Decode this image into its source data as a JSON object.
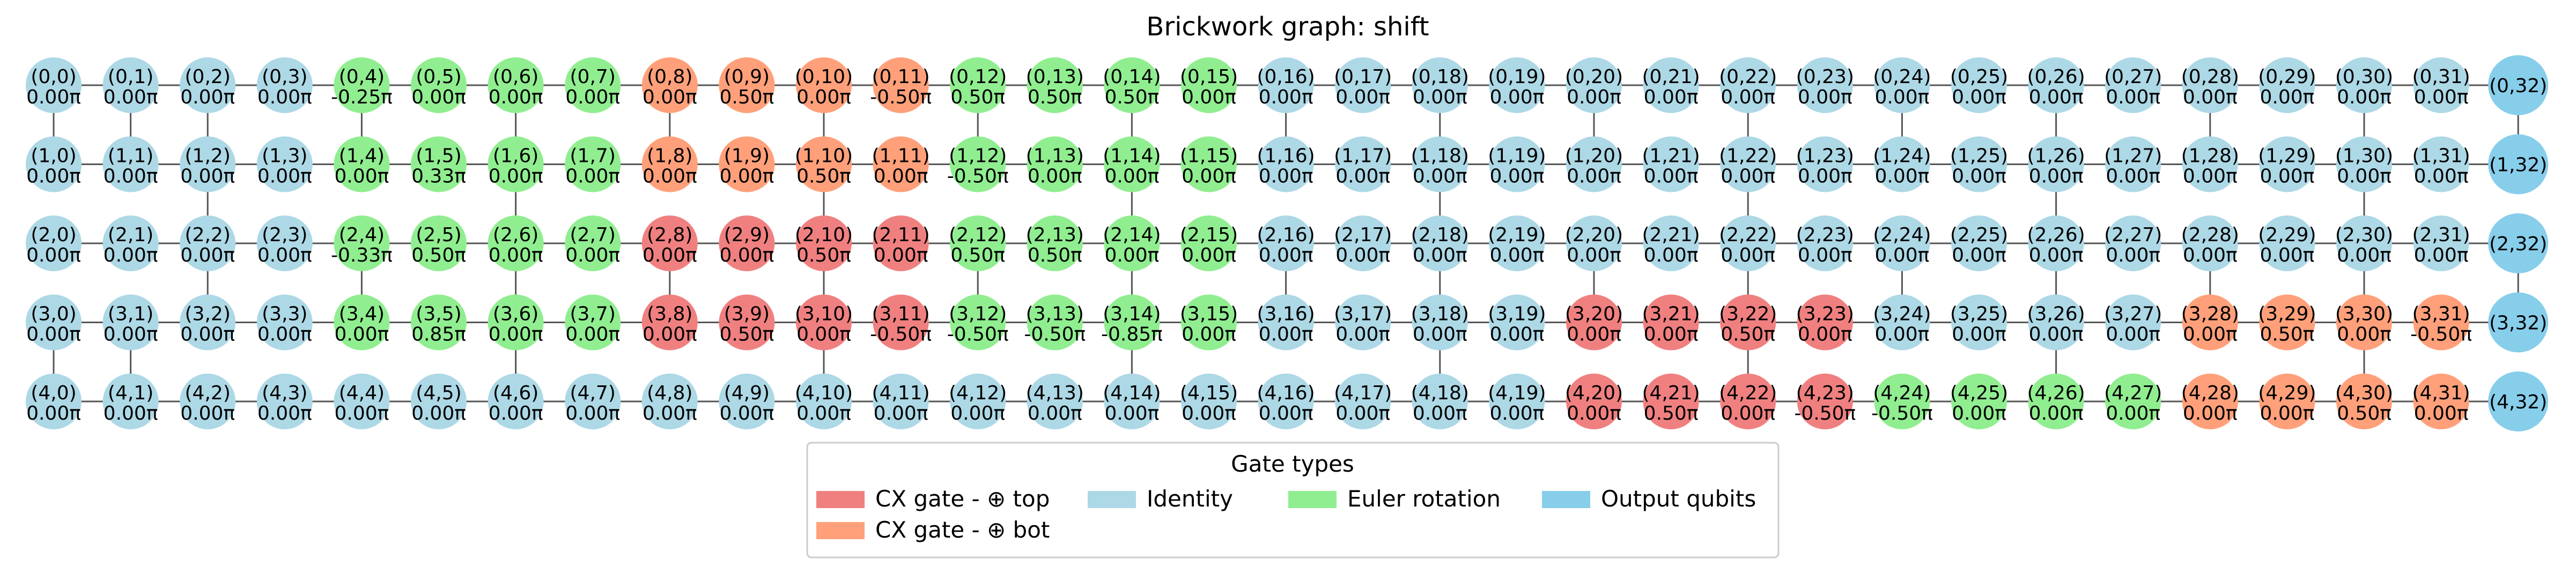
{
  "title": "Brickwork graph: shift",
  "colors": {
    "cx_top": "#f08080",
    "cx_bot": "#ffa07a",
    "identity": "#add8e6",
    "euler": "#90ee90",
    "output": "#87ceeb",
    "edge": "#555555"
  },
  "legend": {
    "title": "Gate types",
    "items": [
      {
        "key": "cx_top",
        "label": "CX gate - ⊕ top"
      },
      {
        "key": "cx_bot",
        "label": "CX gate - ⊕ bot"
      },
      {
        "key": "identity",
        "label": "Identity"
      },
      {
        "key": "euler",
        "label": "Euler rotation"
      },
      {
        "key": "output",
        "label": "Output qubits"
      }
    ]
  },
  "grid": {
    "rows": 5,
    "cols": 33,
    "vertical_links": [
      [
        0,
        1,
        2,
        4,
        6,
        8,
        10,
        12,
        14,
        16,
        18,
        20,
        22,
        24,
        26,
        28,
        30,
        32
      ],
      [
        2,
        6,
        10,
        14,
        18,
        22,
        26,
        30
      ],
      [
        2,
        4,
        6,
        8,
        10,
        12,
        14,
        16,
        18,
        20,
        22,
        24,
        26,
        28,
        30,
        32
      ],
      [
        0,
        1,
        6,
        10,
        14,
        18,
        22,
        26,
        30
      ]
    ]
  },
  "nodes": [
    [
      "I",
      "I",
      "I",
      "I",
      "E",
      "E",
      "E",
      "E",
      "B",
      "B",
      "B",
      "B",
      "E",
      "E",
      "E",
      "E",
      "I",
      "I",
      "I",
      "I",
      "I",
      "I",
      "I",
      "I",
      "I",
      "I",
      "I",
      "I",
      "I",
      "I",
      "I",
      "I",
      "O"
    ],
    [
      "I",
      "I",
      "I",
      "I",
      "E",
      "E",
      "E",
      "E",
      "B",
      "B",
      "B",
      "B",
      "E",
      "E",
      "E",
      "E",
      "I",
      "I",
      "I",
      "I",
      "I",
      "I",
      "I",
      "I",
      "I",
      "I",
      "I",
      "I",
      "I",
      "I",
      "I",
      "I",
      "O"
    ],
    [
      "I",
      "I",
      "I",
      "I",
      "E",
      "E",
      "E",
      "E",
      "T",
      "T",
      "T",
      "T",
      "E",
      "E",
      "E",
      "E",
      "I",
      "I",
      "I",
      "I",
      "I",
      "I",
      "I",
      "I",
      "I",
      "I",
      "I",
      "I",
      "I",
      "I",
      "I",
      "I",
      "O"
    ],
    [
      "I",
      "I",
      "I",
      "I",
      "E",
      "E",
      "E",
      "E",
      "T",
      "T",
      "T",
      "T",
      "E",
      "E",
      "E",
      "E",
      "I",
      "I",
      "I",
      "I",
      "T",
      "T",
      "T",
      "T",
      "I",
      "I",
      "I",
      "I",
      "B",
      "B",
      "B",
      "B",
      "O"
    ],
    [
      "I",
      "I",
      "I",
      "I",
      "I",
      "I",
      "I",
      "I",
      "I",
      "I",
      "I",
      "I",
      "I",
      "I",
      "I",
      "I",
      "I",
      "I",
      "I",
      "I",
      "T",
      "T",
      "T",
      "T",
      "E",
      "E",
      "E",
      "E",
      "B",
      "B",
      "B",
      "B",
      "O"
    ]
  ],
  "angles": [
    [
      "0.00π",
      "0.00π",
      "0.00π",
      "0.00π",
      "-0.25π",
      "0.00π",
      "0.00π",
      "0.00π",
      "0.00π",
      "0.50π",
      "0.00π",
      "-0.50π",
      "0.50π",
      "0.50π",
      "0.50π",
      "0.00π",
      "0.00π",
      "0.00π",
      "0.00π",
      "0.00π",
      "0.00π",
      "0.00π",
      "0.00π",
      "0.00π",
      "0.00π",
      "0.00π",
      "0.00π",
      "0.00π",
      "0.00π",
      "0.00π",
      "0.00π",
      "0.00π",
      ""
    ],
    [
      "0.00π",
      "0.00π",
      "0.00π",
      "0.00π",
      "0.00π",
      "0.33π",
      "0.00π",
      "0.00π",
      "0.00π",
      "0.00π",
      "0.50π",
      "0.00π",
      "-0.50π",
      "0.00π",
      "0.00π",
      "0.00π",
      "0.00π",
      "0.00π",
      "0.00π",
      "0.00π",
      "0.00π",
      "0.00π",
      "0.00π",
      "0.00π",
      "0.00π",
      "0.00π",
      "0.00π",
      "0.00π",
      "0.00π",
      "0.00π",
      "0.00π",
      "0.00π",
      ""
    ],
    [
      "0.00π",
      "0.00π",
      "0.00π",
      "0.00π",
      "-0.33π",
      "0.50π",
      "0.00π",
      "0.00π",
      "0.00π",
      "0.00π",
      "0.50π",
      "0.00π",
      "0.50π",
      "0.50π",
      "0.00π",
      "0.00π",
      "0.00π",
      "0.00π",
      "0.00π",
      "0.00π",
      "0.00π",
      "0.00π",
      "0.00π",
      "0.00π",
      "0.00π",
      "0.00π",
      "0.00π",
      "0.00π",
      "0.00π",
      "0.00π",
      "0.00π",
      "0.00π",
      ""
    ],
    [
      "0.00π",
      "0.00π",
      "0.00π",
      "0.00π",
      "0.00π",
      "0.85π",
      "0.00π",
      "0.00π",
      "0.00π",
      "0.50π",
      "0.00π",
      "-0.50π",
      "-0.50π",
      "-0.50π",
      "-0.85π",
      "0.00π",
      "0.00π",
      "0.00π",
      "0.00π",
      "0.00π",
      "0.00π",
      "0.00π",
      "0.50π",
      "0.00π",
      "0.00π",
      "0.00π",
      "0.00π",
      "0.00π",
      "0.00π",
      "0.50π",
      "0.00π",
      "-0.50π",
      ""
    ],
    [
      "0.00π",
      "0.00π",
      "0.00π",
      "0.00π",
      "0.00π",
      "0.00π",
      "0.00π",
      "0.00π",
      "0.00π",
      "0.00π",
      "0.00π",
      "0.00π",
      "0.00π",
      "0.00π",
      "0.00π",
      "0.00π",
      "0.00π",
      "0.00π",
      "0.00π",
      "0.00π",
      "0.00π",
      "0.50π",
      "0.00π",
      "-0.50π",
      "-0.50π",
      "0.00π",
      "0.00π",
      "0.00π",
      "0.00π",
      "0.00π",
      "0.50π",
      "0.00π",
      ""
    ]
  ]
}
